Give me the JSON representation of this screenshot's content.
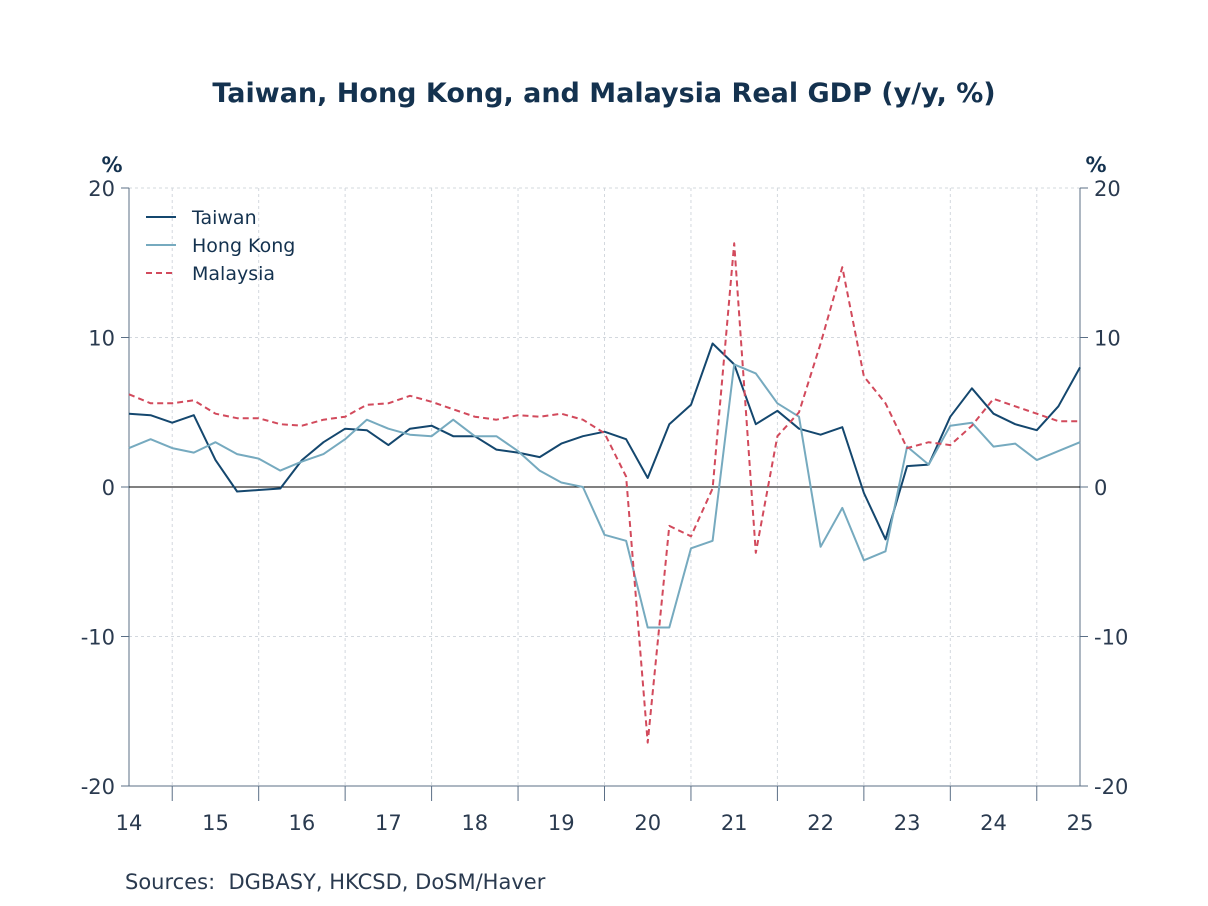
{
  "chart_data": {
    "type": "line",
    "title": "Taiwan, Hong Kong, and Malaysia Real GDP (y/y, %)",
    "ylabel_left": "%",
    "ylabel_right": "%",
    "ylim": [
      -20,
      20
    ],
    "yticks": [
      "20",
      "10",
      "0",
      "-10",
      "-20"
    ],
    "ytick_values": [
      20,
      10,
      0,
      -10,
      -20
    ],
    "xlim": [
      2014.0,
      2025.0
    ],
    "xtick_labels": [
      "14",
      "15",
      "16",
      "17",
      "18",
      "19",
      "20",
      "21",
      "22",
      "23",
      "24",
      "25"
    ],
    "xtick_values": [
      2014,
      2015,
      2016,
      2017,
      2018,
      2019,
      2020,
      2021,
      2022,
      2023,
      2024,
      2025
    ],
    "grid": true,
    "legend_position": "top-left",
    "series": [
      {
        "name": "Taiwan",
        "color": "#14476e",
        "dash": "solid",
        "x": [
          2014.0,
          2014.25,
          2014.5,
          2014.75,
          2015.0,
          2015.25,
          2015.5,
          2015.75,
          2016.0,
          2016.25,
          2016.5,
          2016.75,
          2017.0,
          2017.25,
          2017.5,
          2017.75,
          2018.0,
          2018.25,
          2018.5,
          2018.75,
          2019.0,
          2019.25,
          2019.5,
          2019.75,
          2020.0,
          2020.25,
          2020.5,
          2020.75,
          2021.0,
          2021.25,
          2021.5,
          2021.75,
          2022.0,
          2022.25,
          2022.5,
          2022.75,
          2023.0,
          2023.25,
          2023.5,
          2023.75,
          2024.0,
          2024.25,
          2024.5,
          2024.75,
          2025.0
        ],
        "values": [
          4.9,
          4.8,
          4.3,
          4.8,
          1.8,
          -0.3,
          -0.2,
          -0.1,
          1.8,
          3.0,
          3.9,
          3.8,
          2.8,
          3.9,
          4.1,
          3.4,
          3.4,
          2.5,
          2.3,
          2.0,
          2.9,
          3.4,
          3.7,
          3.2,
          0.6,
          4.2,
          5.5,
          9.6,
          8.2,
          4.2,
          5.1,
          3.9,
          3.5,
          4.0,
          -0.4,
          -3.5,
          1.4,
          1.5,
          4.7,
          6.6,
          4.9,
          4.2,
          3.8,
          5.4,
          8.0
        ]
      },
      {
        "name": "Hong Kong",
        "color": "#76aabf",
        "dash": "solid",
        "x": [
          2014.0,
          2014.25,
          2014.5,
          2014.75,
          2015.0,
          2015.25,
          2015.5,
          2015.75,
          2016.0,
          2016.25,
          2016.5,
          2016.75,
          2017.0,
          2017.25,
          2017.5,
          2017.75,
          2018.0,
          2018.25,
          2018.5,
          2018.75,
          2019.0,
          2019.25,
          2019.5,
          2019.75,
          2020.0,
          2020.25,
          2020.5,
          2020.75,
          2021.0,
          2021.25,
          2021.5,
          2021.75,
          2022.0,
          2022.25,
          2022.5,
          2022.75,
          2023.0,
          2023.25,
          2023.5,
          2023.75,
          2024.0,
          2024.25,
          2024.5,
          2024.75,
          2025.0
        ],
        "values": [
          2.6,
          3.2,
          2.6,
          2.3,
          3.0,
          2.2,
          1.9,
          1.1,
          1.7,
          2.2,
          3.2,
          4.5,
          3.9,
          3.5,
          3.4,
          4.5,
          3.4,
          3.4,
          2.4,
          1.1,
          0.3,
          0.0,
          -3.2,
          -3.6,
          -9.4,
          -9.4,
          -4.1,
          -3.6,
          8.2,
          7.6,
          5.6,
          4.7,
          -4.0,
          -1.4,
          -4.9,
          -4.3,
          2.7,
          1.5,
          4.1,
          4.3,
          2.7,
          2.9,
          1.8,
          2.4,
          3.0
        ]
      },
      {
        "name": "Malaysia",
        "color": "#d24a5c",
        "dash": "dashed",
        "x": [
          2014.0,
          2014.25,
          2014.5,
          2014.75,
          2015.0,
          2015.25,
          2015.5,
          2015.75,
          2016.0,
          2016.25,
          2016.5,
          2016.75,
          2017.0,
          2017.25,
          2017.5,
          2017.75,
          2018.0,
          2018.25,
          2018.5,
          2018.75,
          2019.0,
          2019.25,
          2019.5,
          2019.75,
          2020.0,
          2020.25,
          2020.5,
          2020.75,
          2021.0,
          2021.25,
          2021.5,
          2021.75,
          2022.0,
          2022.25,
          2022.5,
          2022.75,
          2023.0,
          2023.25,
          2023.5,
          2023.75,
          2024.0,
          2024.25,
          2024.5,
          2024.75,
          2025.0
        ],
        "values": [
          6.2,
          5.6,
          5.6,
          5.8,
          4.9,
          4.6,
          4.6,
          4.2,
          4.1,
          4.5,
          4.7,
          5.5,
          5.6,
          6.1,
          5.7,
          5.2,
          4.7,
          4.5,
          4.8,
          4.7,
          4.9,
          4.5,
          3.6,
          0.7,
          -17.1,
          -2.6,
          -3.3,
          -0.1,
          16.3,
          -4.4,
          3.4,
          5.0,
          9.6,
          14.7,
          7.4,
          5.6,
          2.6,
          3.0,
          2.8,
          4.1,
          5.9,
          5.4,
          4.9,
          4.4,
          4.4
        ]
      }
    ]
  },
  "source_note": "Sources:  DGBASY, HKCSD, DoSM/Haver"
}
